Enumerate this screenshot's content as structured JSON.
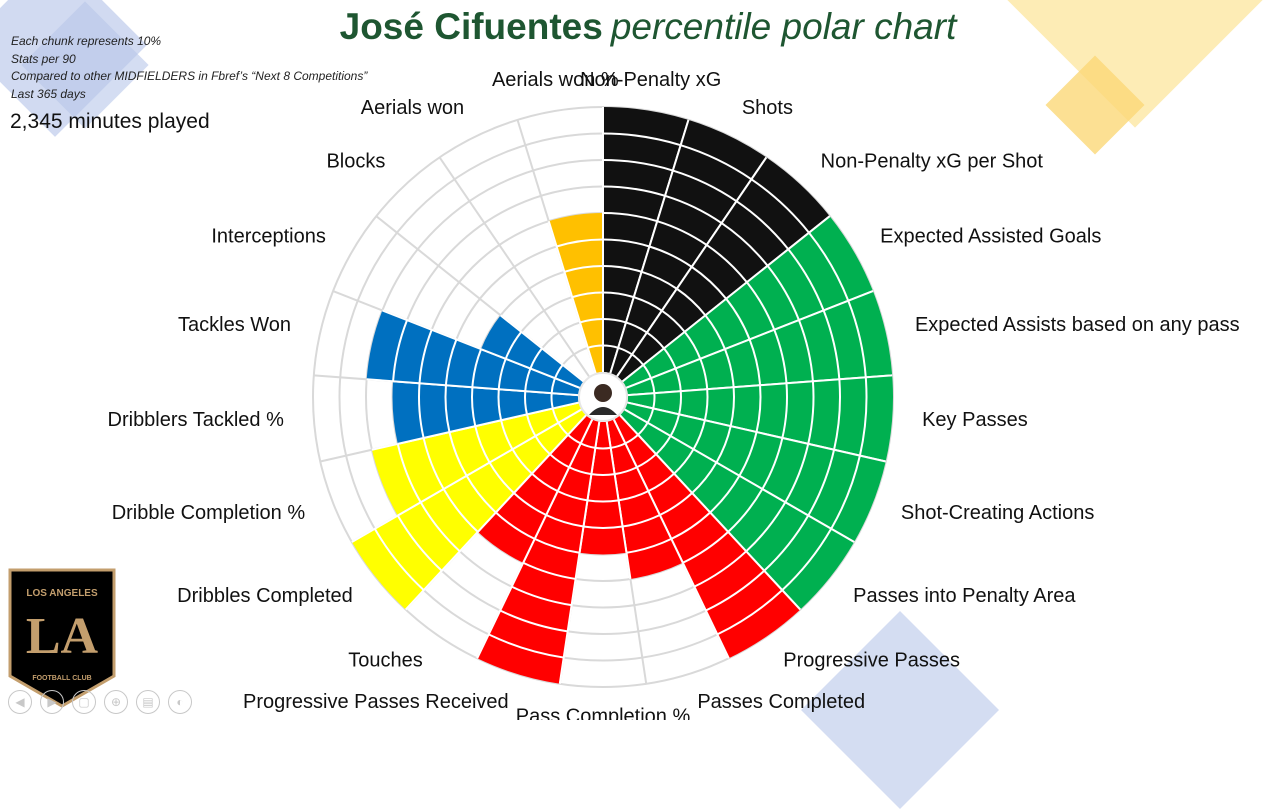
{
  "title": {
    "bold": "José Cifuentes",
    "italic": "percentile polar chart"
  },
  "notes": [
    "Each chunk represents 10%",
    "Stats per 90",
    "Compared to other MIDFIELDERS in Fbref’s “Next 8 Competitions”",
    "Last 365 days"
  ],
  "minutes": "2,345 minutes played",
  "logo": {
    "top_text": "LOS ANGELES",
    "bottom_text": "FOOTBALL CLUB",
    "monogram": "LA",
    "color": "#c39e6d"
  },
  "controls": [
    "◀",
    "▶",
    "▢",
    "⊕",
    "▤",
    "◐"
  ],
  "colors": {
    "title": "#1e5631",
    "shooting": "#111111",
    "passing": "#00b050",
    "possession": "#ff0000",
    "dribbling": "#ffff00",
    "defense": "#0070c0",
    "aerial": "#ffc000",
    "grid": "#d9d9d9"
  },
  "chart_data": {
    "type": "polar-bar",
    "title": "José Cifuentes percentile polar chart",
    "rlim": [
      0,
      100
    ],
    "tick_step": 10,
    "series": [
      {
        "category": "Non-Penalty xG",
        "value": 100,
        "group": "shooting"
      },
      {
        "category": "Shots",
        "value": 100,
        "group": "shooting"
      },
      {
        "category": "Non-Penalty xG per Shot",
        "value": 100,
        "group": "shooting"
      },
      {
        "category": "Expected Assisted Goals",
        "value": 100,
        "group": "passing"
      },
      {
        "category": "Expected Assists based on any pass",
        "value": 100,
        "group": "passing"
      },
      {
        "category": "Key Passes",
        "value": 100,
        "group": "passing"
      },
      {
        "category": "Shot-Creating Actions",
        "value": 100,
        "group": "passing"
      },
      {
        "category": "Passes into Penalty Area",
        "value": 100,
        "group": "passing"
      },
      {
        "category": "Progressive Passes",
        "value": 100,
        "group": "possession"
      },
      {
        "category": "Passes Completed",
        "value": 60,
        "group": "possession"
      },
      {
        "category": "Pass Completion %",
        "value": 50,
        "group": "possession"
      },
      {
        "category": "Progressive Passes Received",
        "value": 100,
        "group": "possession"
      },
      {
        "category": "Touches",
        "value": 60,
        "group": "possession"
      },
      {
        "category": "Dribbles Completed",
        "value": 100,
        "group": "dribbling"
      },
      {
        "category": "Dribble Completion %",
        "value": 80,
        "group": "dribbling"
      },
      {
        "category": "Dribblers Tackled %",
        "value": 70,
        "group": "defense"
      },
      {
        "category": "Tackles Won",
        "value": 80,
        "group": "defense"
      },
      {
        "category": "Interceptions",
        "value": 40,
        "group": "defense"
      },
      {
        "category": "Blocks",
        "value": 0,
        "group": "defense"
      },
      {
        "category": "Aerials won",
        "value": 0,
        "group": "aerial"
      },
      {
        "category": "Aerials won %",
        "value": 60,
        "group": "aerial"
      }
    ]
  }
}
